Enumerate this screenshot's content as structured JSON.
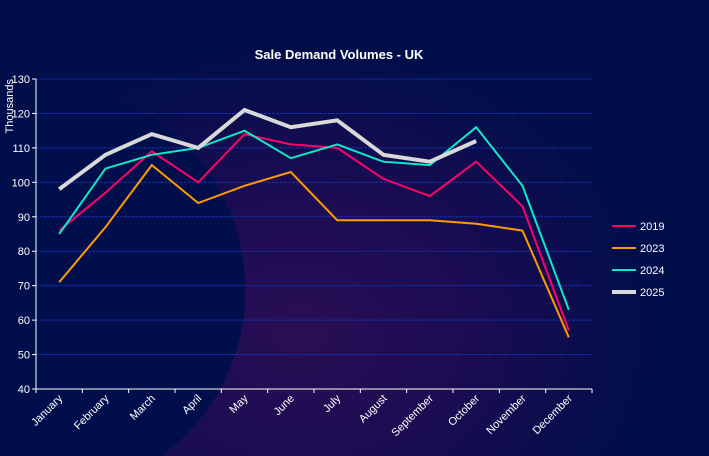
{
  "chart_data": {
    "type": "line",
    "title": "Sale Demand Volumes - UK",
    "xlabel": "",
    "ylabel": "Thousands",
    "ylim": [
      40,
      130
    ],
    "yticks": [
      "40",
      "50",
      "60",
      "70",
      "80",
      "90",
      "100",
      "110",
      "120",
      "130"
    ],
    "grid": true,
    "legend_position": "right",
    "categories": [
      "January",
      "February",
      "March",
      "April",
      "May",
      "June",
      "July",
      "August",
      "September",
      "October",
      "November",
      "December"
    ],
    "series": [
      {
        "name": "2019",
        "color": "#ff0066",
        "values": [
          86,
          97,
          109,
          100,
          114,
          111,
          110,
          101,
          96,
          106,
          93,
          57
        ]
      },
      {
        "name": "2023",
        "color": "#ff9900",
        "values": [
          71,
          87,
          105,
          94,
          99,
          103,
          89,
          89,
          89,
          88,
          86,
          55
        ]
      },
      {
        "name": "2024",
        "color": "#11e8c8",
        "values": [
          85,
          104,
          108,
          110,
          115,
          107,
          111,
          106,
          105,
          116,
          99,
          63
        ]
      },
      {
        "name": "2025",
        "color": "#d9d9d9",
        "values": [
          98,
          108,
          114,
          110,
          121,
          116,
          118,
          108,
          106,
          112,
          null,
          null
        ]
      }
    ]
  }
}
